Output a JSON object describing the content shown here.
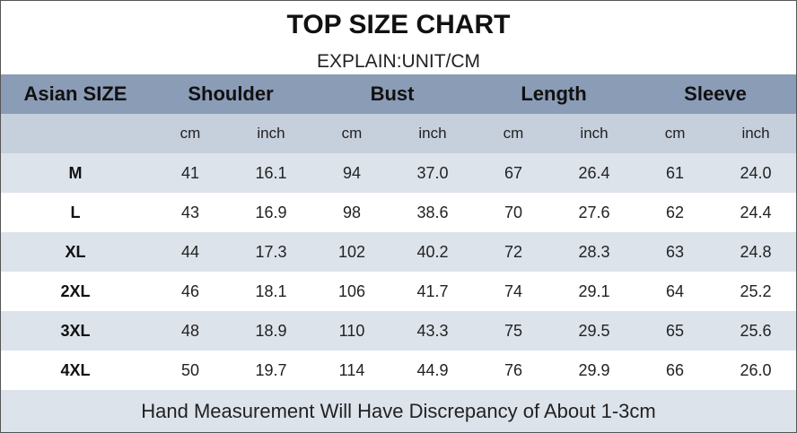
{
  "header": {
    "title": "TOP SIZE CHART",
    "subtitle": "EXPLAIN:UNIT/CM"
  },
  "table": {
    "columns": [
      "Asian SIZE",
      "Shoulder",
      "Bust",
      "Length",
      "Sleeve"
    ],
    "units": [
      "cm",
      "inch",
      "cm",
      "inch",
      "cm",
      "inch",
      "cm",
      "inch"
    ],
    "rows": [
      [
        "M",
        "41",
        "16.1",
        "94",
        "37.0",
        "67",
        "26.4",
        "61",
        "24.0"
      ],
      [
        "L",
        "43",
        "16.9",
        "98",
        "38.6",
        "70",
        "27.6",
        "62",
        "24.4"
      ],
      [
        "XL",
        "44",
        "17.3",
        "102",
        "40.2",
        "72",
        "28.3",
        "63",
        "24.8"
      ],
      [
        "2XL",
        "46",
        "18.1",
        "106",
        "41.7",
        "74",
        "29.1",
        "64",
        "25.2"
      ],
      [
        "3XL",
        "48",
        "18.9",
        "110",
        "43.3",
        "75",
        "29.5",
        "65",
        "25.6"
      ],
      [
        "4XL",
        "50",
        "19.7",
        "114",
        "44.9",
        "76",
        "29.9",
        "66",
        "26.0"
      ]
    ]
  },
  "footer": "Hand Measurement Will Have Discrepancy of About 1-3cm"
}
